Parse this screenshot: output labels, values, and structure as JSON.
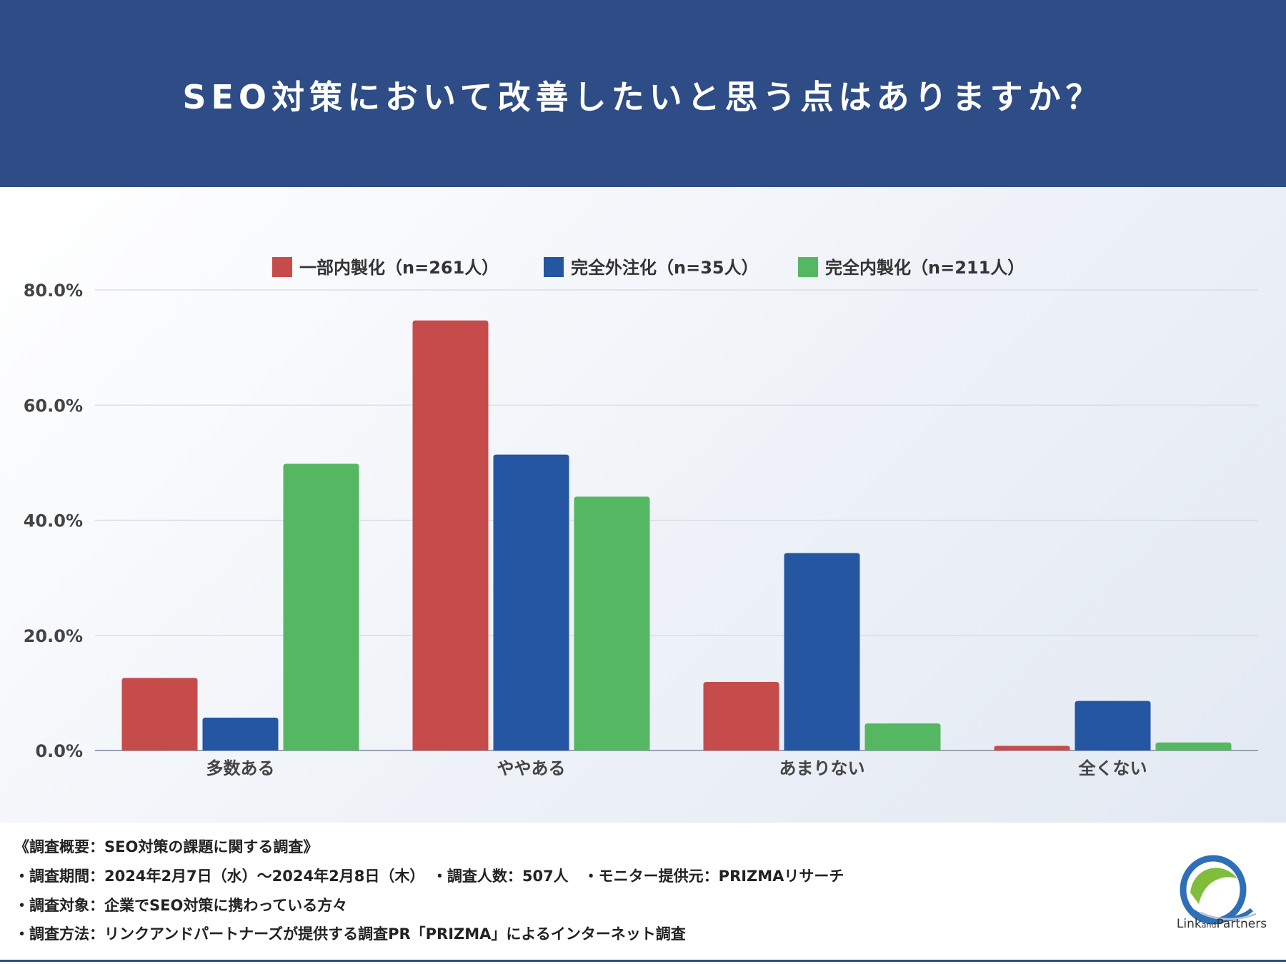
{
  "header": {
    "title": "SEO対策において改善したいと思う点はありますか？"
  },
  "chart_data": {
    "type": "bar",
    "categories": [
      "多数ある",
      "ややある",
      "あまりない",
      "全くない"
    ],
    "series": [
      {
        "name": "一部内製化（n=261人）",
        "color": "#c64c4b",
        "values": [
          12.6,
          74.7,
          11.9,
          0.8
        ]
      },
      {
        "name": "完全外注化（n=35人）",
        "color": "#2456a2",
        "values": [
          5.7,
          51.4,
          34.3,
          8.6
        ]
      },
      {
        "name": "完全内製化（n=211人）",
        "color": "#56b763",
        "values": [
          49.8,
          44.1,
          4.7,
          1.4
        ]
      }
    ],
    "y_ticks": [
      "0.0%",
      "20.0%",
      "40.0%",
      "60.0%",
      "80.0%"
    ],
    "ylim": [
      0,
      80
    ],
    "grid": true,
    "legend_position": "top-center"
  },
  "footer": {
    "lines": [
      "《調査概要：SEO対策の課題に関する調査》",
      "・調査期間：2024年2月7日（水）〜2024年2月8日（木）　・調査人数：507人　・モニター提供元：PRIZMAリサーチ",
      "・調査対象：企業でSEO対策に携わっている方々",
      "・調査方法：リンクアンドパートナーズが提供する調査PR「PRIZMA」によるインターネット調査"
    ],
    "logo_text_main": "Link",
    "logo_text_small": "and",
    "logo_text_end": "Partners"
  }
}
